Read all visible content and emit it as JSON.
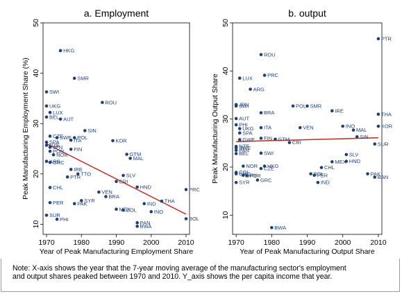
{
  "note": {
    "line1": "Note: X-axis shows the year that the 7-year moving average of the manufacturing sector's employment",
    "line2": "and output shares peaked between 1970 and 2010.  Y_axis shows the per capita income that year."
  },
  "chart_data": [
    {
      "type": "scatter",
      "title": "a. Employment",
      "xlabel": "Year of Peak Manufacturing Employment Share",
      "ylabel": "Peak Manufacturing Employment Share (%)",
      "xlim": [
        1969,
        2011
      ],
      "ylim": [
        8,
        50
      ],
      "xticks": [
        1970,
        1980,
        1990,
        2000,
        2010
      ],
      "yticks": [
        10,
        20,
        30,
        40,
        50
      ],
      "grid": false,
      "marker_color": "#1f3f7a",
      "fit_color": "#c0392b",
      "fit_line": {
        "x": [
          1970,
          2010
        ],
        "y": [
          26,
          12
        ]
      },
      "points": [
        {
          "label": "HKG",
          "x": 1974,
          "y": 44.5
        },
        {
          "label": "SMR",
          "x": 1978,
          "y": 39
        },
        {
          "label": "SWI",
          "x": 1970,
          "y": 36.3
        },
        {
          "label": "ROU",
          "x": 1986,
          "y": 34.2
        },
        {
          "label": "UKG",
          "x": 1970,
          "y": 33.5
        },
        {
          "label": "LUX",
          "x": 1971,
          "y": 32.2
        },
        {
          "label": "BEL",
          "x": 1970,
          "y": 31.3
        },
        {
          "label": "AUT",
          "x": 1974,
          "y": 30.9
        },
        {
          "label": "SIN",
          "x": 1981,
          "y": 28.6
        },
        {
          "label": "CZE",
          "x": 1971,
          "y": 27.5
        },
        {
          "label": "SWE",
          "x": 1973,
          "y": 27.2
        },
        {
          "label": "POL",
          "x": 1978,
          "y": 27.2
        },
        {
          "label": "ITA",
          "x": 1977,
          "y": 26.7
        },
        {
          "label": "KOR",
          "x": 1989,
          "y": 26.6
        },
        {
          "label": "SPA",
          "x": 1970,
          "y": 26.3
        },
        {
          "label": "NZE",
          "x": 1970,
          "y": 25.7
        },
        {
          "label": "JPN",
          "x": 1971,
          "y": 25.3
        },
        {
          "label": "FIN",
          "x": 1977,
          "y": 24.9
        },
        {
          "label": "POR",
          "x": 1971,
          "y": 24.5
        },
        {
          "label": "NOR",
          "x": 1972,
          "y": 23.8
        },
        {
          "label": "GTM",
          "x": 1993,
          "y": 23.9
        },
        {
          "label": "MAL",
          "x": 1994,
          "y": 23.1
        },
        {
          "label": "ARG",
          "x": 1970,
          "y": 22.5
        },
        {
          "label": "GRC",
          "x": 1971,
          "y": 22.3
        },
        {
          "label": "IRE",
          "x": 1977,
          "y": 20.9
        },
        {
          "label": "TTO",
          "x": 1979,
          "y": 20.0
        },
        {
          "label": "PTR",
          "x": 1976,
          "y": 19.4
        },
        {
          "label": "SLV",
          "x": 1992,
          "y": 19.7
        },
        {
          "label": "CRI",
          "x": 1990,
          "y": 18.5
        },
        {
          "label": "CHL",
          "x": 1971,
          "y": 17.3
        },
        {
          "label": "HND",
          "x": 1996,
          "y": 17.4
        },
        {
          "label": "PRC",
          "x": 2010,
          "y": 16.9
        },
        {
          "label": "VEN",
          "x": 1985,
          "y": 16.4
        },
        {
          "label": "BRA",
          "x": 1987,
          "y": 15.5
        },
        {
          "label": "SYR",
          "x": 1980,
          "y": 14.7
        },
        {
          "label": "PER",
          "x": 1971,
          "y": 14.3
        },
        {
          "label": "PAK",
          "x": 1978,
          "y": 14.1
        },
        {
          "label": "IND",
          "x": 1998,
          "y": 14.1
        },
        {
          "label": "THA",
          "x": 2003,
          "y": 14.6
        },
        {
          "label": "MEX",
          "x": 1990,
          "y": 13.0
        },
        {
          "label": "COL",
          "x": 1992,
          "y": 12.8
        },
        {
          "label": "INO",
          "x": 2000,
          "y": 12.5
        },
        {
          "label": "SUR",
          "x": 1970,
          "y": 11.8
        },
        {
          "label": "PHI",
          "x": 1973,
          "y": 11.0
        },
        {
          "label": "BOL",
          "x": 2010,
          "y": 11.1
        },
        {
          "label": "PAN",
          "x": 1996,
          "y": 10.3
        },
        {
          "label": "BWA",
          "x": 1996,
          "y": 9.6
        }
      ]
    },
    {
      "type": "scatter",
      "title": "b. output",
      "xlabel": "Year of Peak Manufacturing Output Share",
      "ylabel": "Peak Manufacturing Output Share",
      "xlim": [
        1969,
        2011
      ],
      "ylim": [
        6,
        50
      ],
      "xticks": [
        1970,
        1980,
        1990,
        2000,
        2010
      ],
      "yticks": [
        10,
        20,
        30,
        40,
        50
      ],
      "grid": false,
      "marker_color": "#1f3f7a",
      "fit_color": "#c0392b",
      "fit_line": {
        "x": [
          1970,
          2010
        ],
        "y": [
          25.3,
          26.1
        ]
      },
      "points": [
        {
          "label": "PTR",
          "x": 2010,
          "y": 46.7
        },
        {
          "label": "ROU",
          "x": 1977,
          "y": 43.4
        },
        {
          "label": "PRC",
          "x": 1978,
          "y": 39.1
        },
        {
          "label": "LUX",
          "x": 1971,
          "y": 38.5
        },
        {
          "label": "ARG",
          "x": 1974,
          "y": 36.2
        },
        {
          "label": "JPN",
          "x": 1970,
          "y": 33.0
        },
        {
          "label": "SWI",
          "x": 1970,
          "y": 32.7
        },
        {
          "label": "POL",
          "x": 1986,
          "y": 32.7
        },
        {
          "label": "SMR",
          "x": 1990,
          "y": 32.7
        },
        {
          "label": "IRE",
          "x": 1997,
          "y": 31.7
        },
        {
          "label": "BRA",
          "x": 1977,
          "y": 31.3
        },
        {
          "label": "THA",
          "x": 2010,
          "y": 31.0
        },
        {
          "label": "AUT",
          "x": 1970,
          "y": 30.1
        },
        {
          "label": "PHI",
          "x": 1970,
          "y": 28.8
        },
        {
          "label": "UKG",
          "x": 1971,
          "y": 28.0
        },
        {
          "label": "ITA",
          "x": 1977,
          "y": 28.2
        },
        {
          "label": "VEN",
          "x": 1988,
          "y": 28.2
        },
        {
          "label": "INO",
          "x": 2000,
          "y": 28.5
        },
        {
          "label": "KOR",
          "x": 2010,
          "y": 28.5
        },
        {
          "label": "MAL",
          "x": 2003,
          "y": 27.7
        },
        {
          "label": "SPA",
          "x": 1971,
          "y": 27.1
        },
        {
          "label": "SIN",
          "x": 2004,
          "y": 26.3
        },
        {
          "label": "FIN",
          "x": 1977,
          "y": 26.0
        },
        {
          "label": "GTM",
          "x": 1981,
          "y": 25.8
        },
        {
          "label": "GWE",
          "x": 1971,
          "y": 25.7
        },
        {
          "label": "CRI",
          "x": 1985,
          "y": 25.1
        },
        {
          "label": "SUR",
          "x": 2009,
          "y": 24.8
        },
        {
          "label": "NZE",
          "x": 1970,
          "y": 24.3
        },
        {
          "label": "SWE",
          "x": 1970,
          "y": 24.0
        },
        {
          "label": "PAN",
          "x": 1970,
          "y": 23.5
        },
        {
          "label": "BEL",
          "x": 1970,
          "y": 22.8
        },
        {
          "label": "SWI",
          "x": 1977,
          "y": 22.9
        },
        {
          "label": "SLV",
          "x": 2001,
          "y": 22.6
        },
        {
          "label": "HND",
          "x": 2001,
          "y": 21.2
        },
        {
          "label": "MEX",
          "x": 1997,
          "y": 21.1
        },
        {
          "label": "NOR",
          "x": 1972,
          "y": 20.2
        },
        {
          "label": "HKG",
          "x": 1978,
          "y": 20.2
        },
        {
          "label": "CZE",
          "x": 1977,
          "y": 19.7
        },
        {
          "label": "CHL",
          "x": 1994,
          "y": 19.9
        },
        {
          "label": "COL",
          "x": 1970,
          "y": 18.9
        },
        {
          "label": "GRC",
          "x": 1970,
          "y": 18.6
        },
        {
          "label": "URY",
          "x": 1972,
          "y": 18.3
        },
        {
          "label": "POR",
          "x": 1973,
          "y": 18.2
        },
        {
          "label": "BOL",
          "x": 1991,
          "y": 18.6
        },
        {
          "label": "PER",
          "x": 1992,
          "y": 18.3
        },
        {
          "label": "PAK",
          "x": 2007,
          "y": 18.6
        },
        {
          "label": "BAN",
          "x": 2009,
          "y": 17.9
        },
        {
          "label": "SYR",
          "x": 1970,
          "y": 16.8
        },
        {
          "label": "GRC",
          "x": 1976,
          "y": 17.3
        },
        {
          "label": "IND",
          "x": 1993,
          "y": 16.8
        },
        {
          "label": "BWA",
          "x": 1980,
          "y": 7.4
        }
      ]
    }
  ]
}
